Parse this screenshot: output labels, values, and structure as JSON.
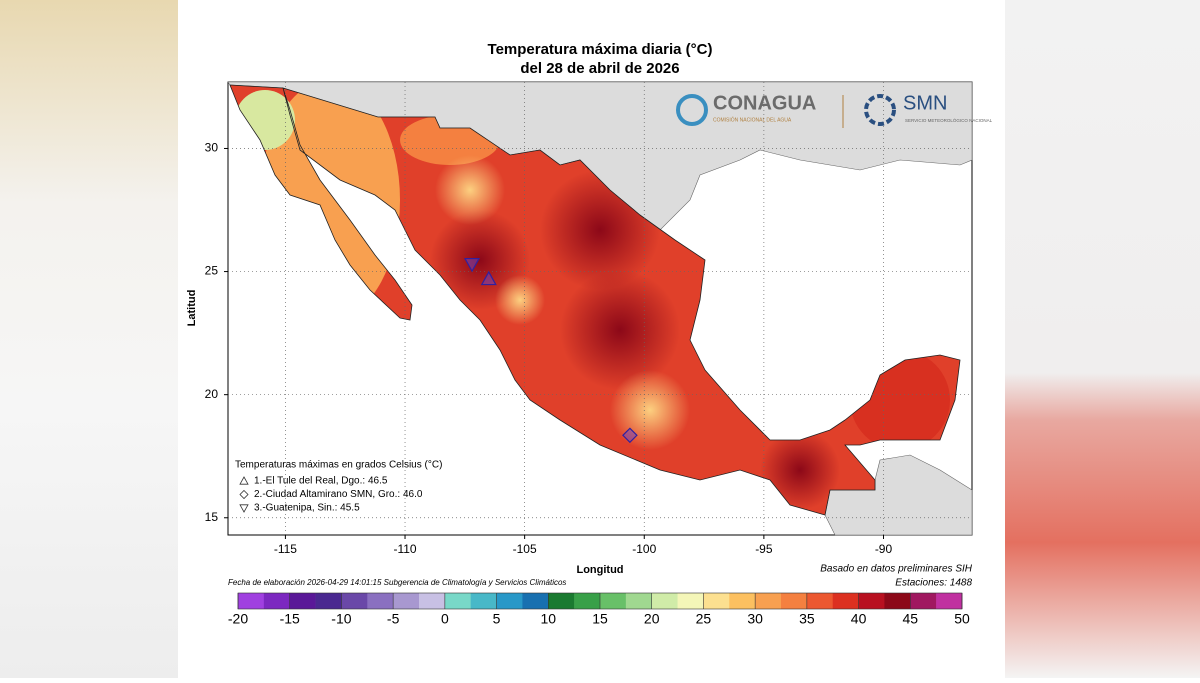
{
  "map": {
    "title": [
      "Temperatura máxima diaria (°C)",
      "del 28 de abril de 2026"
    ],
    "logos": {
      "conagua": "CONAGUA",
      "conagua_sub": "COMISIÓN NACIONAL DEL AGUA",
      "smn": "SMN",
      "smn_sub": "SERVICIO METEOROLÓGICO NACIONAL"
    },
    "xlabel": "Longitud",
    "ylabel": "Latitud",
    "xlim": [
      -117.4,
      -86.3
    ],
    "ylim": [
      14.3,
      32.7
    ],
    "xticks": [
      -115,
      -110,
      -105,
      -100,
      -95,
      -90
    ],
    "yticks": [
      15,
      20,
      25,
      30
    ],
    "grid": true,
    "legend_title": "Temperaturas máximas en grados Celsius (°C)",
    "stations": [
      {
        "label": "1.-El Tule del Real, Dgo.: 46.5",
        "symbol": "triangle-up",
        "lon": -106.5,
        "lat": 24.7
      },
      {
        "label": "2.-Ciudad Altamirano SMN, Gro.: 46.0",
        "symbol": "diamond",
        "lon": -100.6,
        "lat": 18.35
      },
      {
        "label": "3.-Guatenipa, Sin.: 45.5",
        "symbol": "triangle-down",
        "lon": -107.2,
        "lat": 25.3
      }
    ],
    "footer": "Fecha de elaboración 2026-04-29 14:01:15 Subgerencia de Climatología y Servicios Climáticos",
    "source": "Basado en datos preliminares SIH",
    "stations_count": "Estaciones:  1488",
    "colorbar": {
      "lim": [
        -20,
        50
      ],
      "ticks": [
        -20,
        -15,
        -10,
        -5,
        0,
        5,
        10,
        15,
        20,
        25,
        30,
        35,
        40,
        45,
        50
      ],
      "colors": [
        "#a040e0",
        "#7c28c0",
        "#5a1898",
        "#4a2890",
        "#6a48a8",
        "#8a70c0",
        "#a898d0",
        "#c8c0e4",
        "#78d8c8",
        "#48b8c8",
        "#2898c8",
        "#1870b0",
        "#1a7a30",
        "#38a048",
        "#68c068",
        "#a0d890",
        "#d0eca8",
        "#f4f6b8",
        "#fce090",
        "#fcc060",
        "#f8a050",
        "#f48040",
        "#ec5830",
        "#dc3020",
        "#b81020",
        "#8c0818",
        "#a01860",
        "#c030a0"
      ]
    }
  }
}
